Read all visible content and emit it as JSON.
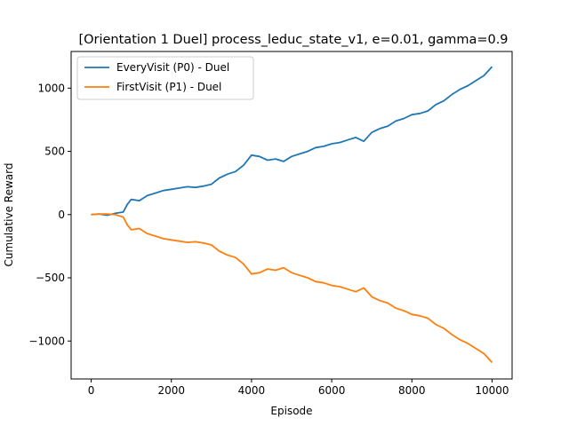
{
  "chart_data": {
    "type": "line",
    "title": "[Orientation 1 Duel] process_leduc_state_v1, e=0.01, gamma=0.9",
    "xlabel": "Episode",
    "ylabel": "Cumulative Reward",
    "xlim": [
      -500,
      10500
    ],
    "ylim": [
      -1300,
      1290
    ],
    "xticks": [
      0,
      2000,
      4000,
      6000,
      8000,
      10000
    ],
    "xtick_labels": [
      "0",
      "2000",
      "4000",
      "6000",
      "8000",
      "10000"
    ],
    "yticks": [
      -1000,
      -500,
      0,
      500,
      1000
    ],
    "ytick_labels": [
      "−1000",
      "−500",
      "0",
      "500",
      "1000"
    ],
    "grid": false,
    "legend": "top-left",
    "series": [
      {
        "name": "EveryVisit (P0) - Duel",
        "color": "#1f77b4",
        "x": [
          0,
          200,
          400,
          600,
          800,
          900,
          1000,
          1200,
          1400,
          1600,
          1800,
          2000,
          2200,
          2400,
          2600,
          2800,
          3000,
          3200,
          3400,
          3600,
          3800,
          4000,
          4200,
          4400,
          4600,
          4800,
          5000,
          5200,
          5400,
          5600,
          5800,
          6000,
          6200,
          6400,
          6600,
          6800,
          7000,
          7200,
          7400,
          7600,
          7800,
          8000,
          8200,
          8400,
          8600,
          8800,
          9000,
          9200,
          9400,
          9600,
          9800,
          10000
        ],
        "values": [
          0,
          5,
          -5,
          10,
          20,
          80,
          120,
          110,
          150,
          170,
          190,
          200,
          210,
          220,
          215,
          225,
          240,
          290,
          320,
          340,
          390,
          470,
          460,
          430,
          440,
          420,
          460,
          480,
          500,
          530,
          540,
          560,
          570,
          590,
          610,
          580,
          650,
          680,
          700,
          740,
          760,
          790,
          800,
          820,
          870,
          900,
          950,
          990,
          1020,
          1060,
          1100,
          1170
        ]
      },
      {
        "name": "FirstVisit (P1) - Duel",
        "color": "#ff7f0e",
        "x": [
          0,
          200,
          400,
          600,
          800,
          900,
          1000,
          1200,
          1400,
          1600,
          1800,
          2000,
          2200,
          2400,
          2600,
          2800,
          3000,
          3200,
          3400,
          3600,
          3800,
          4000,
          4200,
          4400,
          4600,
          4800,
          5000,
          5200,
          5400,
          5600,
          5800,
          6000,
          6200,
          6400,
          6600,
          6800,
          7000,
          7200,
          7400,
          7600,
          7800,
          8000,
          8200,
          8400,
          8600,
          8800,
          9000,
          9200,
          9400,
          9600,
          9800,
          10000
        ],
        "values": [
          0,
          5,
          5,
          0,
          -20,
          -80,
          -120,
          -110,
          -150,
          -170,
          -190,
          -200,
          -210,
          -220,
          -215,
          -225,
          -240,
          -290,
          -320,
          -340,
          -390,
          -470,
          -460,
          -430,
          -440,
          -420,
          -460,
          -480,
          -500,
          -530,
          -540,
          -560,
          -570,
          -590,
          -610,
          -580,
          -650,
          -680,
          -700,
          -740,
          -760,
          -790,
          -800,
          -820,
          -870,
          -900,
          -950,
          -990,
          -1020,
          -1060,
          -1100,
          -1170
        ]
      }
    ]
  }
}
